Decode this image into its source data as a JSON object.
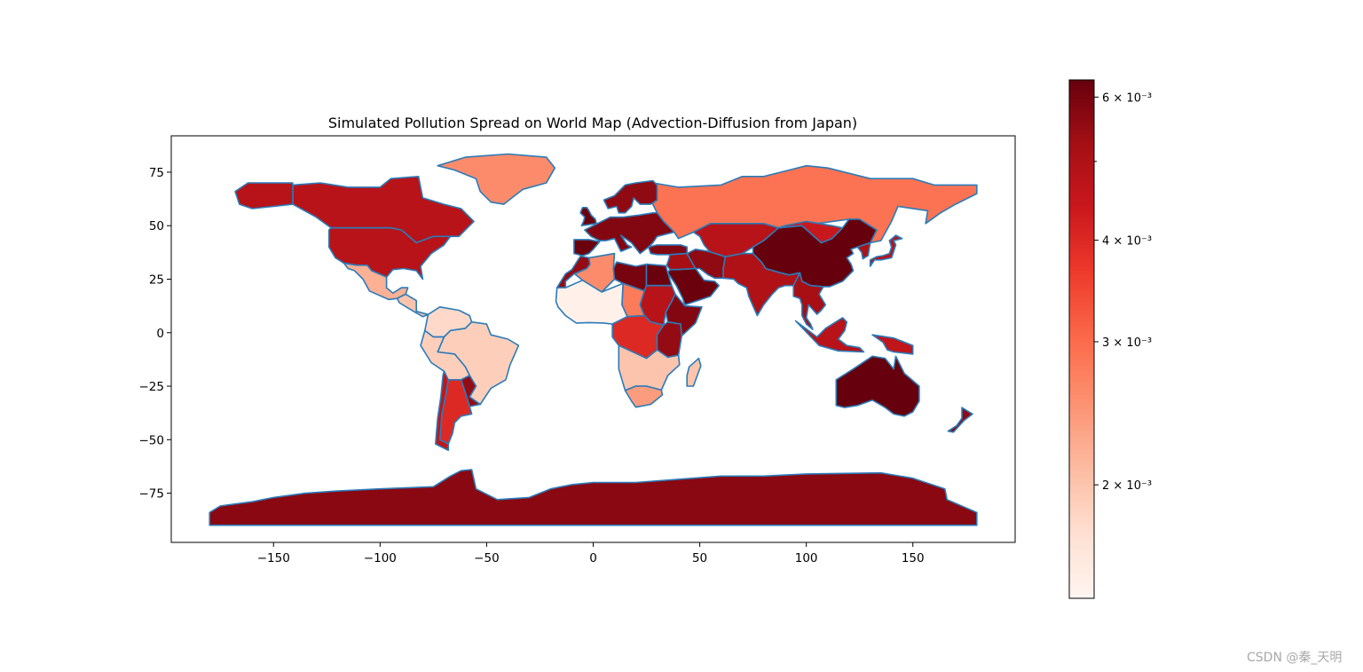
{
  "chart_data": {
    "type": "choropleth",
    "title": "Simulated Pollution Spread on World Map (Advection-Diffusion from Japan)",
    "xlabel": "",
    "ylabel": "",
    "xlim": [
      -198,
      198
    ],
    "ylim": [
      -98,
      92
    ],
    "xticks": [
      -150,
      -100,
      -50,
      0,
      50,
      100,
      150
    ],
    "yticks": [
      75,
      50,
      25,
      0,
      -25,
      -50,
      -75
    ],
    "grid": false,
    "colormap": "Reds",
    "colorbar": {
      "scale": "log",
      "range": [
        0.00145,
        0.0063
      ],
      "tick_labels": [
        {
          "value": 0.006,
          "label": "6 × 10⁻³"
        },
        {
          "value": 0.004,
          "label": "4 × 10⁻³"
        },
        {
          "value": 0.003,
          "label": "3 × 10⁻³"
        },
        {
          "value": 0.002,
          "label": "2 × 10⁻³"
        }
      ],
      "minor_ticks": [
        0.005
      ]
    },
    "edge_color": "#2b7bb9",
    "regions": [
      {
        "name": "Canada",
        "value": 0.0048
      },
      {
        "name": "Alaska",
        "value": 0.0048
      },
      {
        "name": "Greenland",
        "value": 0.0026
      },
      {
        "name": "USA",
        "value": 0.0048
      },
      {
        "name": "Mexico",
        "value": 0.0022
      },
      {
        "name": "Central America",
        "value": 0.002
      },
      {
        "name": "Colombia/Venezuela",
        "value": 0.0018
      },
      {
        "name": "Brazil",
        "value": 0.0019
      },
      {
        "name": "Peru/Bolivia",
        "value": 0.0019
      },
      {
        "name": "Paraguay/Uruguay",
        "value": 0.0055
      },
      {
        "name": "Argentina",
        "value": 0.004
      },
      {
        "name": "Chile",
        "value": 0.0046
      },
      {
        "name": "Russia",
        "value": 0.0029
      },
      {
        "name": "Scandinavia",
        "value": 0.0056
      },
      {
        "name": "Europe",
        "value": 0.0058
      },
      {
        "name": "Iberia",
        "value": 0.0062
      },
      {
        "name": "UK",
        "value": 0.0062
      },
      {
        "name": "Turkey",
        "value": 0.0058
      },
      {
        "name": "Kazakhstan/Central Asia",
        "value": 0.0048
      },
      {
        "name": "Middle East",
        "value": 0.0052
      },
      {
        "name": "Saudi Arabia",
        "value": 0.0062
      },
      {
        "name": "Iran",
        "value": 0.0056
      },
      {
        "name": "India",
        "value": 0.005
      },
      {
        "name": "China",
        "value": 0.0063
      },
      {
        "name": "Mongolia",
        "value": 0.0044
      },
      {
        "name": "Japan",
        "value": 0.0048
      },
      {
        "name": "Korea",
        "value": 0.005
      },
      {
        "name": "Southeast Asia",
        "value": 0.0052
      },
      {
        "name": "Indonesia",
        "value": 0.0048
      },
      {
        "name": "Papua New Guinea",
        "value": 0.0046
      },
      {
        "name": "Australia",
        "value": 0.0063
      },
      {
        "name": "New Zealand",
        "value": 0.0056
      },
      {
        "name": "Morocco/Western Sahara",
        "value": 0.0055
      },
      {
        "name": "Algeria",
        "value": 0.0026
      },
      {
        "name": "Libya",
        "value": 0.006
      },
      {
        "name": "Egypt",
        "value": 0.0062
      },
      {
        "name": "Sudan",
        "value": 0.0048
      },
      {
        "name": "Chad",
        "value": 0.0028
      },
      {
        "name": "West Africa",
        "value": 0.0015
      },
      {
        "name": "Ethiopia/Horn",
        "value": 0.0058
      },
      {
        "name": "Central Africa",
        "value": 0.004
      },
      {
        "name": "East Africa",
        "value": 0.0055
      },
      {
        "name": "Southern Africa",
        "value": 0.002
      },
      {
        "name": "South Africa",
        "value": 0.0024
      },
      {
        "name": "Madagascar",
        "value": 0.002
      },
      {
        "name": "Antarctica",
        "value": 0.0057
      }
    ]
  },
  "watermark": "CSDN @秦_天明"
}
